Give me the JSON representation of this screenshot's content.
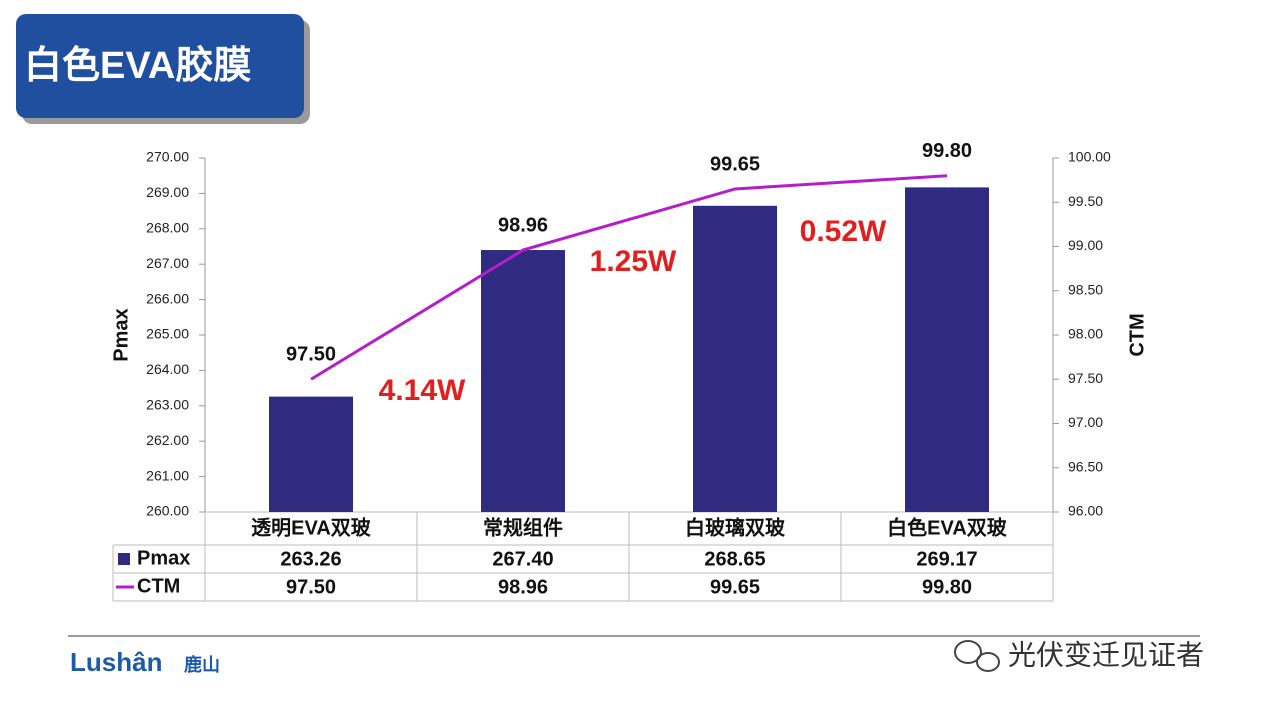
{
  "chart_data": {
    "type": "bar",
    "title": "白色EVA胶膜",
    "categories": [
      "透明EVA双玻",
      "常规组件",
      "白玻璃双玻",
      "白色EVA双玻"
    ],
    "series": [
      {
        "name": "Pmax",
        "type": "bar",
        "color": "#2e2b80",
        "values": [
          263.26,
          267.4,
          268.65,
          269.17
        ],
        "value_labels": [
          "263.26",
          "267.40",
          "268.65",
          "269.17"
        ]
      },
      {
        "name": "CTM",
        "type": "line",
        "axis": "y2",
        "color": "#b41ec8",
        "values": [
          97.5,
          98.96,
          99.65,
          99.8
        ],
        "value_labels": [
          "97.50",
          "98.96",
          "99.65",
          "99.80"
        ]
      }
    ],
    "ylabel": "Pmax",
    "y2label": "CTM",
    "ylim": [
      260,
      270
    ],
    "yticks": [
      {
        "value": 260,
        "label": "260.00"
      },
      {
        "value": 261,
        "label": "261.00"
      },
      {
        "value": 262,
        "label": "262.00"
      },
      {
        "value": 263,
        "label": "263.00"
      },
      {
        "value": 264,
        "label": "264.00"
      },
      {
        "value": 265,
        "label": "265.00"
      },
      {
        "value": 266,
        "label": "266.00"
      },
      {
        "value": 267,
        "label": "267.00"
      },
      {
        "value": 268,
        "label": "268.00"
      },
      {
        "value": 269,
        "label": "269.00"
      },
      {
        "value": 270,
        "label": "270.00"
      }
    ],
    "y2lim": [
      96,
      100
    ],
    "y2ticks": [
      {
        "value": 96,
        "label": "96.00"
      },
      {
        "value": 96.5,
        "label": "96.50"
      },
      {
        "value": 97,
        "label": "97.00"
      },
      {
        "value": 97.5,
        "label": "97.50"
      },
      {
        "value": 98,
        "label": "98.00"
      },
      {
        "value": 98.5,
        "label": "98.50"
      },
      {
        "value": 99,
        "label": "99.00"
      },
      {
        "value": 99.5,
        "label": "99.50"
      },
      {
        "value": 100,
        "label": "100.00"
      }
    ],
    "annotations": [
      "4.14W",
      "1.25W",
      "0.52W"
    ],
    "annotation_color": "#e02020",
    "grid": false
  },
  "footer": {
    "logo": "Lushân",
    "logo_cn": "鹿山",
    "watermark": "光伏变迁见证者"
  }
}
